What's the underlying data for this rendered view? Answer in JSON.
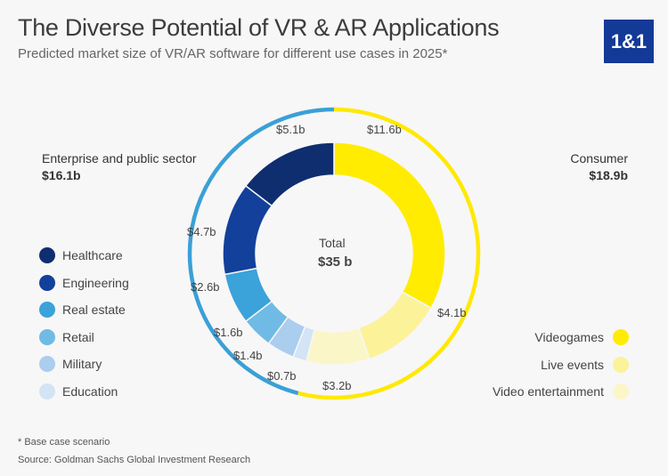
{
  "title": "The Diverse Potential of VR & AR Applications",
  "subtitle": "Predicted market size of VR/AR software for different use cases in 2025*",
  "logo": "1&1",
  "footnote": "* Base case scenario",
  "source": "Source: Goldman Sachs Global Investment Research",
  "chart_data": {
    "type": "donut",
    "center_label": "Total",
    "center_value": "$35 b",
    "groups": [
      {
        "name": "Enterprise and public sector",
        "value_label": "$16.1b",
        "value": 16.1,
        "color": "#3aa0d8"
      },
      {
        "name": "Consumer",
        "value_label": "$18.9b",
        "value": 18.9,
        "color": "#ffe900"
      }
    ],
    "segments": [
      {
        "name": "Videogames",
        "value": 11.6,
        "label": "$11.6b",
        "color": "#ffec00",
        "group": "Consumer"
      },
      {
        "name": "Live events",
        "value": 4.1,
        "label": "$4.1b",
        "color": "#fbf29a",
        "group": "Consumer"
      },
      {
        "name": "Video entertainment",
        "value": 3.2,
        "label": "$3.2b",
        "color": "#fbf6c8",
        "group": "Consumer"
      },
      {
        "name": "Education",
        "value": 0.7,
        "label": "$0.7b",
        "color": "#d3e4f5",
        "group": "Enterprise and public sector"
      },
      {
        "name": "Military",
        "value": 1.4,
        "label": "$1.4b",
        "color": "#abcdee",
        "group": "Enterprise and public sector"
      },
      {
        "name": "Retail",
        "value": 1.6,
        "label": "$1.6b",
        "color": "#6fbbe6",
        "group": "Enterprise and public sector"
      },
      {
        "name": "Real estate",
        "value": 2.6,
        "label": "$2.6b",
        "color": "#3ba2da",
        "group": "Enterprise and public sector"
      },
      {
        "name": "Engineering",
        "value": 4.7,
        "label": "$4.7b",
        "color": "#13409a",
        "group": "Enterprise and public sector"
      },
      {
        "name": "Healthcare",
        "value": 5.1,
        "label": "$5.1b",
        "color": "#0e2e70",
        "group": "Enterprise and public sector"
      }
    ],
    "legend_left": [
      "Healthcare",
      "Engineering",
      "Real estate",
      "Retail",
      "Military",
      "Education"
    ],
    "legend_right": [
      "Videogames",
      "Live events",
      "Video entertainment"
    ]
  }
}
